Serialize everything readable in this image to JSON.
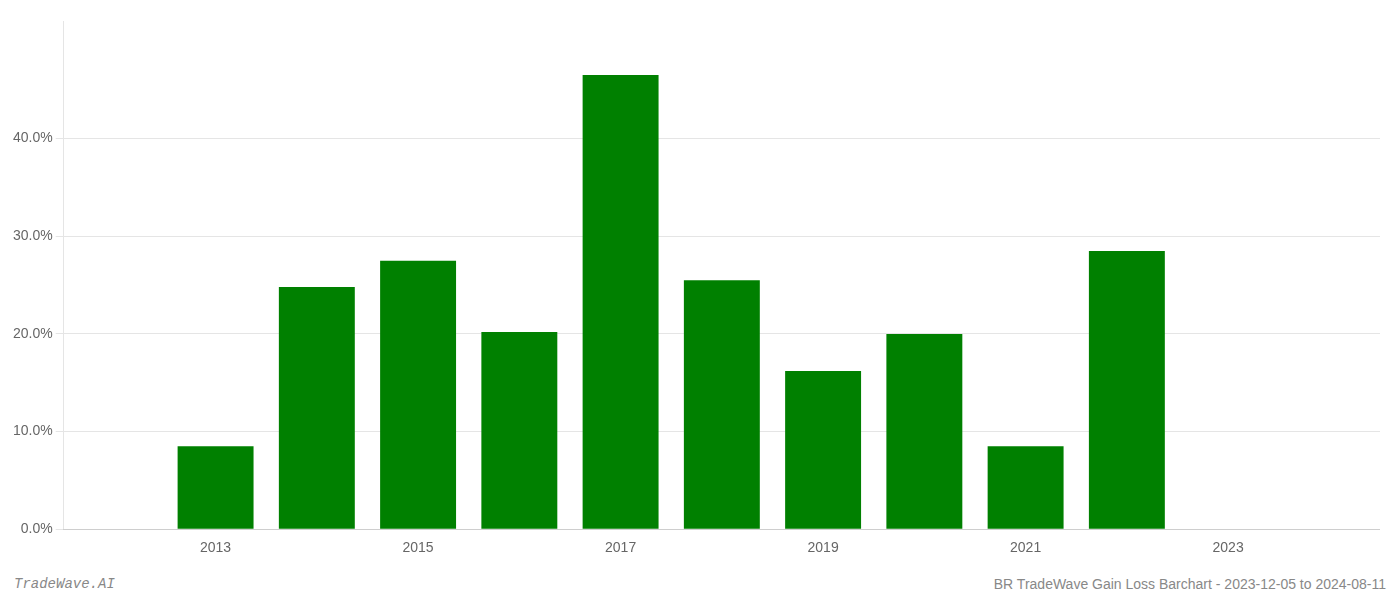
{
  "chart_data": {
    "type": "bar",
    "x": [
      2013,
      2014,
      2015,
      2016,
      2017,
      2018,
      2019,
      2020,
      2021,
      2022
    ],
    "values": [
      0.085,
      0.248,
      0.275,
      0.202,
      0.465,
      0.255,
      0.162,
      0.2,
      0.085,
      0.285
    ],
    "color": "#008000",
    "xlim": [
      2011.5,
      2024.5
    ],
    "xticks": [
      2013,
      2015,
      2017,
      2019,
      2021,
      2023
    ],
    "ylim": [
      0,
      0.52
    ],
    "yticks": [
      {
        "value": 0.0,
        "label": "0.0%"
      },
      {
        "value": 0.1,
        "label": "10.0%"
      },
      {
        "value": 0.2,
        "label": "20.0%"
      },
      {
        "value": 0.3,
        "label": "30.0%"
      },
      {
        "value": 0.4,
        "label": "40.0%"
      }
    ],
    "grid": true,
    "annotations": [
      "TradeWave.AI",
      "BR TradeWave Gain Loss Barchart - 2023-12-05 to 2024-08-11"
    ]
  }
}
